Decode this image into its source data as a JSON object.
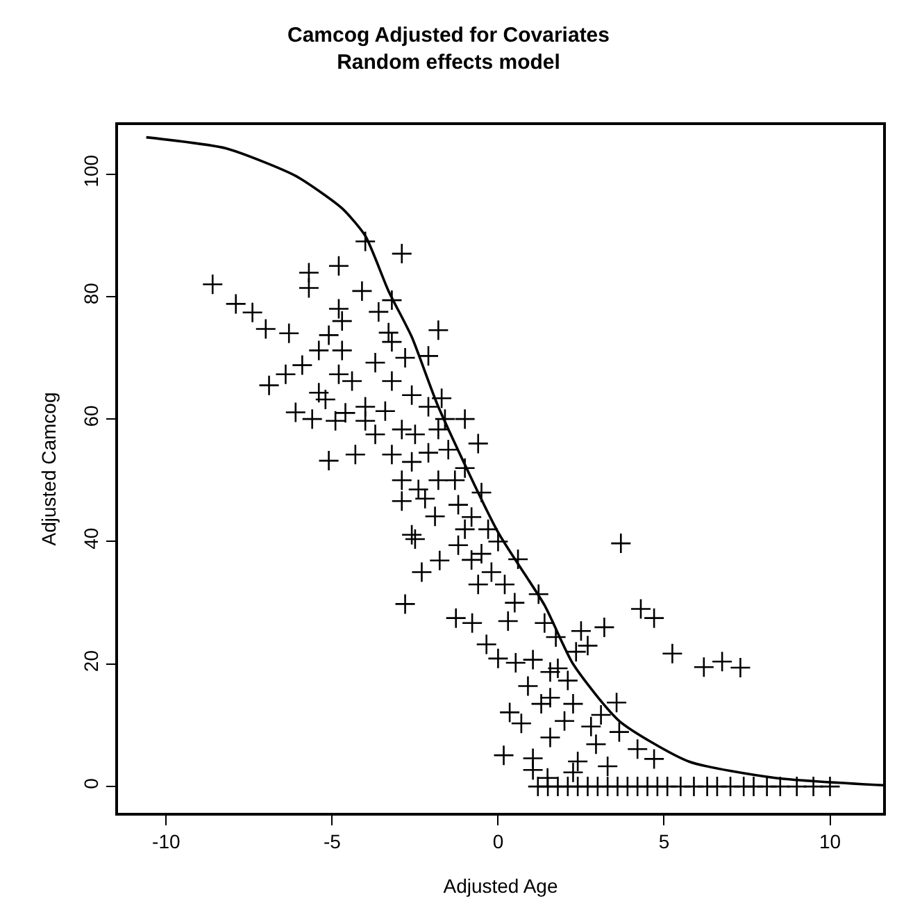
{
  "chart_data": {
    "type": "scatter",
    "title": "Camcog Adjusted for Covariates",
    "subtitle": "Random effects model",
    "xlabel": "Adjusted Age",
    "ylabel": "Adjusted Camcog",
    "xlim": [
      -11.45,
      11.6
    ],
    "xticks": [
      -10,
      -5,
      0,
      5,
      10
    ],
    "ylim": [
      -4.3,
      108
    ],
    "yticks": [
      0,
      20,
      40,
      60,
      80,
      100
    ],
    "grid": false,
    "series": [
      {
        "color": "#000000",
        "marker": "cross",
        "x": [
          -8.6,
          -7.9,
          -7.4,
          -7.0,
          -6.3,
          -6.9,
          -6.4,
          -5.9,
          -6.1,
          -5.6,
          -5.1,
          -5.7,
          -5.7,
          -4.8,
          -4.0,
          -2.9,
          -4.1,
          -4.8,
          -4.7,
          -5.4,
          -5.1,
          -4.7,
          -4.8,
          -5.4,
          -5.2,
          -4.4,
          -4.6,
          -4.9,
          -4.0,
          -4.0,
          -4.3,
          -3.6,
          -3.2,
          -3.3,
          -3.2,
          -3.7,
          -3.2,
          -2.8,
          -2.1,
          -1.8,
          -2.1,
          -2.6,
          -3.7,
          -3.4,
          -2.9,
          -2.5,
          -3.2,
          -2.6,
          -2.1,
          -1.8,
          -2.9,
          -2.4,
          -2.9,
          -1.8,
          -1.9,
          -2.6,
          -1.7,
          -2.8,
          -2.5,
          -2.3,
          -1.76,
          -1.2,
          -1.27,
          -0.78,
          -0.35,
          0,
          0.17,
          0.35,
          0.7,
          1.05,
          1.05,
          1.22,
          0.6,
          1.4,
          1.74,
          1.57,
          2.5,
          2.7,
          2.35,
          3.2,
          3.7,
          4.3,
          4.7,
          5.25,
          6.2,
          6.75,
          7.3,
          3.57,
          4.7,
          4.2,
          3.65,
          3.1,
          2.8,
          2.26,
          2.1,
          1.8,
          2.4,
          2.26,
          3.3,
          1.3,
          0.9,
          0.53,
          1.05,
          1.57,
          2.0,
          2.95,
          1.57,
          1.49,
          -1.5,
          -1.0,
          -0.5,
          -1.2,
          -0.8,
          -0.3,
          0,
          -0.5,
          -0.2,
          0.2,
          -1.0,
          -1.3,
          0.5,
          0.3,
          -0.6,
          -1.6,
          -1.0,
          -0.6,
          -2.2,
          -0.8,
          1.2,
          1.5,
          1.8,
          2.1,
          2.4,
          2.7,
          3.0,
          3.3,
          3.6,
          3.9,
          4.2,
          4.5,
          4.8,
          5.1,
          5.5,
          5.9,
          6.3,
          6.6,
          7.0,
          7.4,
          7.7,
          8.1,
          8.5,
          9.0,
          9.5,
          10.0
        ],
        "values": [
          82,
          78.8,
          77.4,
          74.7,
          74,
          65.5,
          67.3,
          68.8,
          61.1,
          60,
          53.2,
          83.9,
          81.4,
          85,
          89,
          87,
          80.9,
          78,
          76,
          71.2,
          73.7,
          71.2,
          67.3,
          64.3,
          63.2,
          66.2,
          61,
          59.7,
          62,
          59.7,
          54.2,
          77.5,
          79.4,
          74.1,
          72.6,
          69.2,
          66.2,
          70,
          70.3,
          74.5,
          62,
          63.9,
          57.5,
          61.3,
          58.3,
          57.5,
          54.2,
          53,
          54.5,
          58.3,
          50,
          48.5,
          46.6,
          50,
          44.1,
          41.1,
          63.4,
          29.8,
          40.4,
          35,
          36.9,
          39.4,
          27.5,
          26.7,
          23.2,
          20.9,
          5.1,
          12.1,
          10.3,
          2.7,
          4.6,
          31.4,
          37.1,
          26.7,
          24.4,
          18.7,
          25.4,
          23,
          22,
          26,
          39.7,
          29,
          27.5,
          21.7,
          19.5,
          20.4,
          19.4,
          13.7,
          4.5,
          6.1,
          8.9,
          11.7,
          9.8,
          13.5,
          17.3,
          19.3,
          4.1,
          2.3,
          3.3,
          13.5,
          16.4,
          20.2,
          20.7,
          14.5,
          10.7,
          6.9,
          8,
          1.4,
          55,
          52,
          48,
          46,
          44,
          42,
          40,
          38,
          35,
          33,
          42,
          50,
          30,
          27,
          33,
          60,
          60,
          56,
          47,
          37,
          0,
          0,
          0,
          0,
          0,
          0,
          0,
          0,
          0,
          0,
          0,
          0,
          0,
          0,
          0,
          0,
          0,
          0,
          0,
          0,
          0,
          0,
          0,
          0,
          0,
          0
        ]
      },
      {
        "type": "line",
        "color": "#000000",
        "marker": "none",
        "line_style": "solid",
        "x": [
          -10.6,
          -8.2,
          -6.1,
          -4.7,
          -4.0,
          -3.3,
          -2.6,
          -1.8,
          0,
          1.4,
          2.26,
          3.65,
          5.74,
          8.35,
          11.6
        ],
        "values": [
          106,
          104.2,
          99.7,
          94.4,
          89.9,
          80.9,
          73.4,
          62,
          41.5,
          29.6,
          20,
          10.7,
          4.1,
          1.4,
          0.2
        ]
      }
    ]
  }
}
